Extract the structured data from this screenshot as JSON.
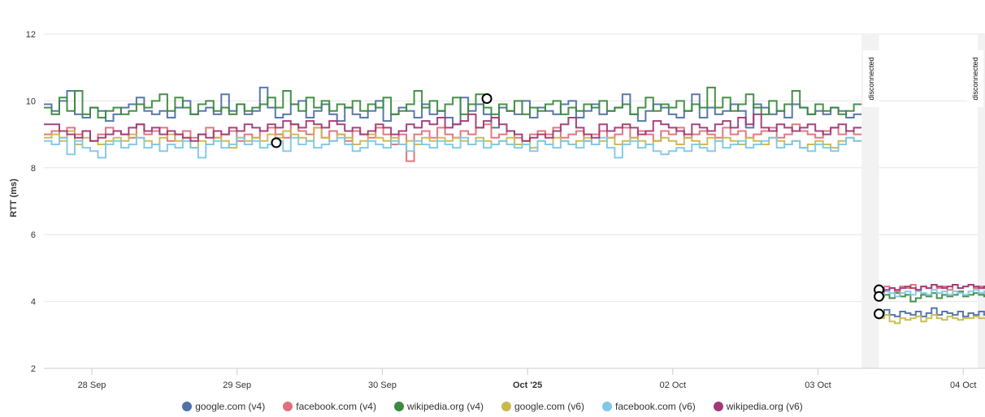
{
  "chart_data": {
    "type": "line",
    "ylabel": "RTT (ms)",
    "ylim": [
      2,
      12
    ],
    "yticks": [
      "2",
      "4",
      "6",
      "8",
      "10",
      "12"
    ],
    "grid": true,
    "legend_position": "bottom",
    "xticks": [
      {
        "label": "28 Sep",
        "day": 0,
        "bold": false
      },
      {
        "label": "29 Sep",
        "day": 1,
        "bold": false
      },
      {
        "label": "30 Sep",
        "day": 2,
        "bold": false
      },
      {
        "label": "Oct '25",
        "day": 3,
        "bold": true
      },
      {
        "label": "02 Oct",
        "day": 4,
        "bold": false
      },
      {
        "label": "03 Oct",
        "day": 5,
        "bold": false
      },
      {
        "label": "04 Oct",
        "day": 6,
        "bold": false
      }
    ],
    "disconnected_label": "disconnected",
    "disconnected_bands": [
      {
        "start_day": 5.3,
        "end_day": 5.42
      },
      {
        "start_day": 6.1,
        "end_day": 6.16
      }
    ],
    "series": [
      {
        "name": "google.com (v4)",
        "color": "#4f72a8",
        "segments": [
          {
            "start_day": -0.33,
            "end_day": 5.3,
            "values": [
              9.9,
              9.7,
              10.0,
              10.3,
              9.6,
              9.5,
              9.8,
              9.7,
              9.4,
              9.6,
              9.8,
              9.9,
              10.1,
              9.7,
              9.6,
              9.7,
              9.5,
              9.8,
              10.0,
              9.6,
              9.7,
              9.8,
              9.6,
              10.2,
              9.7,
              9.9,
              9.6,
              9.7,
              10.4,
              9.8,
              9.5,
              9.6,
              9.9,
              10.0,
              9.5,
              9.7,
              9.9,
              9.6,
              9.4,
              9.8,
              9.6,
              9.5,
              9.7,
              10.0,
              9.4,
              9.6,
              9.8,
              9.7,
              9.5,
              9.9,
              9.6,
              9.7,
              9.5,
              9.3,
              10.1,
              9.7,
              9.9,
              9.6,
              9.2,
              9.8,
              9.7,
              9.6,
              10.0,
              9.5,
              9.8,
              9.7,
              9.6,
              9.9,
              10.0,
              9.5,
              9.7,
              9.9,
              9.6,
              9.7,
              9.8,
              10.2,
              9.6,
              9.4,
              9.7,
              9.9,
              9.8,
              9.6,
              9.5,
              9.7,
              10.2,
              9.5,
              9.8,
              9.6,
              9.7,
              9.9,
              9.7,
              9.2,
              9.9,
              9.8,
              9.6,
              9.7,
              9.5,
              9.9,
              9.8,
              9.6,
              9.7,
              9.6,
              9.8,
              9.7,
              9.5,
              9.6
            ]
          },
          {
            "start_day": 5.42,
            "end_day": 6.18,
            "values": [
              3.6,
              3.75,
              3.6,
              3.55,
              3.7,
              3.65,
              3.6,
              3.7,
              3.55,
              3.65,
              3.8,
              3.6,
              3.7,
              3.65,
              3.6,
              3.7,
              3.55,
              3.65,
              3.6,
              3.7,
              3.6
            ]
          }
        ]
      },
      {
        "name": "facebook.com (v4)",
        "color": "#e0707a",
        "segments": [
          {
            "start_day": -0.33,
            "end_day": 5.3,
            "values": [
              9.0,
              9.1,
              8.9,
              9.2,
              9.0,
              9.1,
              8.8,
              9.0,
              9.2,
              9.1,
              9.0,
              8.9,
              9.3,
              9.0,
              9.1,
              9.2,
              8.8,
              9.0,
              9.1,
              8.9,
              9.0,
              9.2,
              8.9,
              9.0,
              9.1,
              8.8,
              9.0,
              8.9,
              9.1,
              9.2,
              9.0,
              8.9,
              9.3,
              9.1,
              9.0,
              9.2,
              8.9,
              9.1,
              9.0,
              8.8,
              9.1,
              9.0,
              8.9,
              9.2,
              9.0,
              8.7,
              9.0,
              8.2,
              9.0,
              9.1,
              8.9,
              9.2,
              9.0,
              8.9,
              9.1,
              9.0,
              9.2,
              9.3,
              8.9,
              9.0,
              9.1,
              8.9,
              8.8,
              9.0,
              9.1,
              9.0,
              9.2,
              8.9,
              9.0,
              9.1,
              8.8,
              9.0,
              9.1,
              8.9,
              9.0,
              9.2,
              8.9,
              9.1,
              9.0,
              8.8,
              9.1,
              9.0,
              9.2,
              8.9,
              9.0,
              9.1,
              9.0,
              8.9,
              9.2,
              9.0,
              9.1,
              8.9,
              9.0,
              9.1,
              9.2,
              8.9,
              9.0,
              9.3,
              9.1,
              9.0,
              8.9,
              9.1,
              9.2,
              9.0,
              9.1,
              9.0
            ]
          },
          {
            "start_day": 5.42,
            "end_day": 6.18,
            "values": [
              4.35,
              4.45,
              4.4,
              4.3,
              4.45,
              4.4,
              4.5,
              4.35,
              4.45,
              4.4,
              4.5,
              4.4,
              4.45,
              4.35,
              4.5,
              4.4,
              4.45,
              4.5,
              4.4,
              4.45,
              4.4
            ]
          }
        ]
      },
      {
        "name": "wikipedia.org (v4)",
        "color": "#3d8a3e",
        "segments": [
          {
            "start_day": -0.33,
            "end_day": 5.3,
            "values": [
              9.8,
              9.6,
              10.1,
              9.7,
              10.3,
              9.6,
              9.8,
              9.5,
              9.7,
              9.8,
              9.6,
              9.7,
              9.9,
              9.8,
              10.0,
              10.2,
              9.7,
              10.1,
              9.8,
              9.6,
              9.9,
              10.0,
              9.7,
              9.8,
              9.6,
              9.9,
              9.7,
              9.8,
              9.9,
              10.1,
              9.8,
              10.3,
              9.9,
              9.7,
              10.1,
              9.8,
              10.0,
              9.7,
              9.9,
              9.8,
              10.0,
              9.7,
              9.9,
              9.8,
              10.1,
              9.6,
              9.7,
              9.9,
              10.3,
              9.8,
              10.0,
              9.7,
              9.9,
              10.1,
              9.6,
              9.9,
              10.2,
              9.8,
              9.6,
              9.9,
              9.7,
              10.0,
              9.6,
              9.8,
              9.7,
              9.9,
              10.0,
              9.6,
              9.8,
              9.7,
              9.9,
              9.8,
              10.0,
              9.7,
              9.8,
              9.9,
              9.6,
              9.8,
              10.1,
              9.7,
              9.9,
              9.8,
              10.0,
              9.7,
              9.9,
              9.8,
              10.4,
              9.8,
              10.1,
              9.7,
              9.9,
              10.2,
              9.8,
              9.6,
              10.0,
              9.7,
              9.9,
              10.3,
              9.8,
              9.6,
              9.9,
              9.7,
              9.8,
              9.6,
              9.7,
              9.9
            ]
          },
          {
            "start_day": 5.42,
            "end_day": 6.18,
            "values": [
              4.15,
              4.2,
              4.1,
              4.25,
              4.15,
              4.2,
              4.0,
              4.1,
              4.2,
              4.15,
              4.25,
              4.1,
              4.2,
              4.15,
              4.2,
              4.3,
              4.15,
              4.2,
              4.25,
              4.2,
              4.15
            ]
          }
        ]
      },
      {
        "name": "google.com (v6)",
        "color": "#c9b84e",
        "segments": [
          {
            "start_day": -0.33,
            "end_day": 5.3,
            "values": [
              8.9,
              9.0,
              8.8,
              9.1,
              8.7,
              8.9,
              8.8,
              8.7,
              8.8,
              8.9,
              8.8,
              9.0,
              8.9,
              8.8,
              8.7,
              8.9,
              9.0,
              8.8,
              8.9,
              8.6,
              8.8,
              8.7,
              8.9,
              8.8,
              8.6,
              8.9,
              8.8,
              8.9,
              8.8,
              9.0,
              8.9,
              9.1,
              9.0,
              8.9,
              8.8,
              9.2,
              8.9,
              8.8,
              9.0,
              8.9,
              8.7,
              8.8,
              9.0,
              8.9,
              8.8,
              8.9,
              8.7,
              8.8,
              8.7,
              8.9,
              8.8,
              8.9,
              8.8,
              8.9,
              8.8,
              8.7,
              8.9,
              8.8,
              8.7,
              8.8,
              8.9,
              8.7,
              8.8,
              8.6,
              8.8,
              8.7,
              8.9,
              8.8,
              8.7,
              8.8,
              8.9,
              8.7,
              8.8,
              8.9,
              8.7,
              8.8,
              8.9,
              8.8,
              8.7,
              8.8,
              8.9,
              8.8,
              8.7,
              8.9,
              8.8,
              8.7,
              8.9,
              8.8,
              8.9,
              8.8,
              8.7,
              8.9,
              8.8,
              8.7,
              8.9,
              8.8,
              8.7,
              8.8,
              8.6,
              8.7,
              8.8,
              8.7,
              8.6,
              8.8,
              8.9,
              8.8
            ]
          },
          {
            "start_day": 5.42,
            "end_day": 6.18,
            "values": [
              3.5,
              3.6,
              3.4,
              3.35,
              3.5,
              3.45,
              3.5,
              3.55,
              3.4,
              3.5,
              3.6,
              3.5,
              3.45,
              3.55,
              3.5,
              3.45,
              3.5,
              3.5,
              3.55,
              3.5,
              3.5
            ]
          }
        ]
      },
      {
        "name": "facebook.com (v6)",
        "color": "#7ec8e8",
        "segments": [
          {
            "start_day": -0.33,
            "end_day": 5.3,
            "values": [
              8.8,
              8.7,
              8.9,
              8.4,
              8.8,
              8.6,
              8.5,
              8.3,
              8.7,
              8.8,
              8.6,
              8.7,
              8.9,
              8.6,
              8.7,
              8.5,
              8.7,
              8.6,
              8.8,
              8.6,
              8.3,
              8.7,
              8.8,
              8.6,
              8.7,
              8.9,
              8.7,
              8.8,
              8.6,
              8.7,
              8.8,
              8.5,
              8.9,
              8.7,
              8.8,
              8.6,
              8.7,
              8.8,
              8.9,
              8.7,
              8.5,
              8.6,
              8.8,
              8.7,
              8.6,
              8.8,
              8.7,
              8.5,
              8.8,
              8.7,
              8.6,
              8.8,
              8.7,
              8.6,
              8.9,
              8.7,
              8.8,
              8.6,
              8.7,
              8.8,
              8.7,
              8.6,
              8.7,
              8.5,
              8.8,
              8.7,
              8.6,
              8.8,
              8.7,
              8.6,
              8.8,
              8.7,
              8.9,
              8.6,
              8.3,
              8.7,
              8.8,
              8.6,
              8.7,
              8.5,
              8.4,
              8.5,
              8.6,
              8.5,
              8.7,
              8.6,
              8.5,
              8.8,
              8.6,
              8.7,
              8.8,
              8.6,
              8.7,
              8.8,
              8.9,
              8.6,
              8.7,
              8.8,
              8.6,
              8.5,
              8.7,
              8.6,
              8.5,
              8.7,
              8.9,
              8.8
            ]
          },
          {
            "start_day": 5.42,
            "end_day": 6.18,
            "values": [
              4.2,
              4.3,
              4.25,
              4.15,
              4.25,
              4.3,
              4.2,
              4.3,
              4.25,
              4.2,
              4.35,
              4.25,
              4.3,
              4.2,
              4.3,
              4.25,
              4.2,
              4.3,
              4.35,
              4.25,
              4.3
            ]
          }
        ]
      },
      {
        "name": "wikipedia.org (v6)",
        "color": "#a03a76",
        "segments": [
          {
            "start_day": -0.33,
            "end_day": 5.3,
            "values": [
              9.3,
              9.3,
              9.1,
              9.0,
              8.9,
              9.1,
              8.8,
              8.9,
              9.0,
              9.1,
              9.0,
              9.2,
              9.3,
              9.1,
              9.2,
              9.0,
              9.1,
              9.0,
              8.9,
              8.8,
              9.0,
              8.9,
              9.1,
              9.0,
              9.2,
              9.1,
              9.3,
              9.2,
              9.1,
              9.3,
              9.2,
              9.4,
              9.3,
              9.2,
              9.4,
              9.3,
              9.2,
              9.4,
              9.3,
              9.1,
              9.2,
              9.0,
              9.1,
              9.3,
              9.2,
              9.0,
              9.1,
              9.3,
              9.2,
              9.4,
              9.3,
              9.5,
              9.2,
              9.3,
              9.4,
              9.6,
              9.2,
              9.4,
              9.5,
              9.3,
              9.1,
              9.0,
              8.8,
              8.9,
              9.0,
              8.9,
              9.1,
              9.3,
              9.5,
              9.2,
              9.0,
              8.9,
              9.3,
              9.1,
              9.2,
              9.3,
              9.2,
              9.0,
              9.1,
              9.4,
              9.3,
              9.2,
              9.1,
              9.0,
              9.3,
              9.2,
              9.1,
              9.3,
              9.4,
              9.2,
              9.5,
              9.3,
              9.6,
              9.2,
              9.1,
              9.3,
              9.2,
              9.1,
              9.2,
              9.3,
              9.1,
              9.0,
              9.2,
              9.3,
              9.1,
              9.2
            ]
          },
          {
            "start_day": 5.42,
            "end_day": 6.18,
            "values": [
              4.3,
              4.35,
              4.4,
              4.35,
              4.4,
              4.45,
              4.4,
              4.35,
              4.45,
              4.4,
              4.5,
              4.45,
              4.4,
              4.45,
              4.5,
              4.4,
              4.45,
              4.5,
              4.45,
              4.4,
              4.45
            ]
          }
        ]
      }
    ],
    "markers": [
      {
        "day": 1.27,
        "value": 8.75
      },
      {
        "day": 2.72,
        "value": 10.07
      },
      {
        "day": 5.42,
        "value": 4.35
      },
      {
        "day": 5.42,
        "value": 4.15
      },
      {
        "day": 5.42,
        "value": 3.63
      }
    ]
  }
}
